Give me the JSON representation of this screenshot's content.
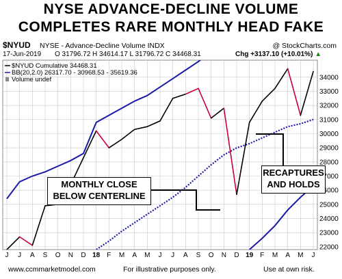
{
  "title": {
    "line1": "NYSE ADVANCE-DECLINE VOLUME",
    "line2": "COMPLETES RARE MONTHLY HEAD FAKE"
  },
  "header": {
    "symbol": "$NYUD",
    "subtitle": "NYSE - Advance-Decline Volume  INDX",
    "copyright": "@ StockCharts.com",
    "date": "17-Jun-2019",
    "ohlc": "O 31796.72  H 34614.17  L 31796.72  C 34468.31",
    "change": "Chg +3137.10 (+10.01%)",
    "change_arrow": "▲"
  },
  "legend": {
    "line1": "$NYUD Cumulative 34468.31",
    "line2": "BB(20,2.0) 26317.70 - 30968.53 - 35619.36",
    "line3": "Volume undef"
  },
  "annotations": {
    "left_line1": "MONTHLY CLOSE",
    "left_line2": "BELOW CENTERLINE",
    "right_line1": "RECAPTURES",
    "right_line2": "AND HOLDS"
  },
  "footer": {
    "url": "www.ccmmarketmodel.com",
    "middle": "For illustrative purposes only.",
    "right": "Use at own risk."
  },
  "colors": {
    "price_up": "#000000",
    "price_down": "#cc0033",
    "band": "#1a1aa8",
    "centerline": "#1a1aa8",
    "grid": "#c8c8c8"
  },
  "chart_data": {
    "type": "line",
    "x": [
      "Jun-2017",
      "Jul-2017",
      "Aug-2017",
      "Sep-2017",
      "Oct-2017",
      "Nov-2017",
      "Dec-2017",
      "Jan-2018",
      "Feb-2018",
      "Mar-2018",
      "Apr-2018",
      "May-2018",
      "Jun-2018",
      "Jul-2018",
      "Aug-2018",
      "Sep-2018",
      "Oct-2018",
      "Nov-2018",
      "Dec-2018",
      "Jan-2019",
      "Feb-2019",
      "Mar-2019",
      "Apr-2019",
      "May-2019",
      "Jun-2019"
    ],
    "x_tick_labels": [
      "J",
      "J",
      "A",
      "S",
      "O",
      "N",
      "D",
      "18",
      "F",
      "M",
      "A",
      "M",
      "J",
      "J",
      "A",
      "S",
      "O",
      "N",
      "D",
      "19",
      "F",
      "M",
      "A",
      "M",
      "J"
    ],
    "y_tick_labels": [
      "22000",
      "23000",
      "24000",
      "25000",
      "26000",
      "27000",
      "28000",
      "29000",
      "30000",
      "31000",
      "32000",
      "33000",
      "34000"
    ],
    "ylim": [
      21800,
      35200
    ],
    "grid": true,
    "series": [
      {
        "name": "$NYUD Cumulative",
        "values": [
          21800,
          22700,
          22100,
          24900,
          25000,
          26400,
          28300,
          30200,
          29000,
          29600,
          30300,
          30500,
          30900,
          32500,
          32800,
          33200,
          31100,
          31800,
          25700,
          30800,
          32300,
          33200,
          34600,
          31300,
          34400
        ],
        "down_months": [
          2,
          8,
          15,
          16,
          18,
          23
        ]
      },
      {
        "name": "BB Upper",
        "values": [
          25400,
          26600,
          27000,
          27300,
          27700,
          28100,
          28600,
          30800,
          31300,
          31800,
          32300,
          32700,
          33300,
          33900,
          34500,
          35100,
          35800,
          null,
          null,
          null,
          null,
          null,
          null,
          null,
          null
        ]
      },
      {
        "name": "BB Centerline",
        "values": [
          null,
          null,
          null,
          null,
          null,
          null,
          20800,
          21800,
          22400,
          23100,
          23700,
          24300,
          24900,
          25500,
          26200,
          27000,
          27800,
          28500,
          29000,
          29300,
          29700,
          30100,
          30500,
          30700,
          31000
        ]
      },
      {
        "name": "BB Lower",
        "values": [
          null,
          null,
          null,
          null,
          null,
          null,
          null,
          null,
          null,
          null,
          null,
          null,
          null,
          null,
          null,
          null,
          null,
          null,
          null,
          21800,
          22600,
          23500,
          24600,
          25500,
          26300
        ]
      }
    ]
  }
}
